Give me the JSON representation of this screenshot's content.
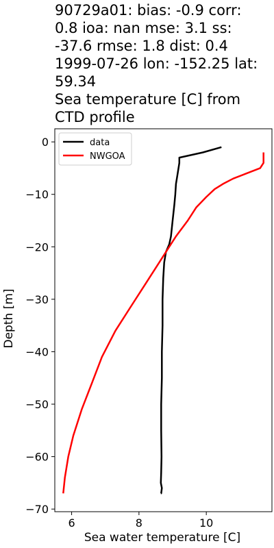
{
  "title_lines": [
    "90729a01: bias: -0.9  corr:",
    "0.8  ioa: nan  mse: 3.1  ss:",
    "-37.6  rmse: 1.8  dist: 0.4",
    "1999-07-26 lon: -152.25 lat:",
    "59.34",
    "Sea temperature [C] from",
    "CTD profile"
  ],
  "chart_data": {
    "type": "line",
    "xlabel": "Sea water temperature [C]",
    "ylabel": "Depth [m]",
    "xlim": [
      5.5,
      11.95
    ],
    "ylim": [
      -70.5,
      2.5
    ],
    "xticks": [
      6,
      8,
      10
    ],
    "yticks": [
      0,
      -10,
      -20,
      -30,
      -40,
      -50,
      -60,
      -70
    ],
    "legend_position": "top-left",
    "grid": false,
    "series": [
      {
        "name": "data",
        "color": "#000000",
        "x": [
          10.45,
          9.9,
          9.2,
          9.2,
          9.15,
          9.1,
          9.08,
          9.05,
          9.0,
          8.95,
          8.9,
          8.8,
          8.75,
          8.72,
          8.7,
          8.7,
          8.68,
          8.68,
          8.66,
          8.66,
          8.67,
          8.66,
          8.65,
          8.68,
          8.66,
          8.65
        ],
        "y": [
          -1,
          -2,
          -3,
          -4,
          -6,
          -8,
          -10,
          -12,
          -15,
          -18,
          -19.5,
          -21,
          -23,
          -26,
          -30,
          -35,
          -40,
          -45,
          -50,
          -55,
          -60,
          -63,
          -65,
          -66,
          -67,
          -67
        ]
      },
      {
        "name": "NWGOA",
        "color": "#ff0000",
        "x": [
          11.7,
          11.7,
          11.6,
          11.2,
          10.8,
          10.5,
          10.25,
          10.0,
          9.7,
          9.45,
          9.1,
          8.7,
          8.2,
          7.8,
          7.3,
          6.9,
          6.6,
          6.3,
          6.05,
          5.9,
          5.8,
          5.75
        ],
        "y": [
          -2,
          -4,
          -5,
          -6,
          -7,
          -8,
          -9,
          -10.5,
          -12.5,
          -15,
          -18,
          -22,
          -27,
          -31,
          -36,
          -41,
          -46,
          -51,
          -56,
          -60,
          -64,
          -67
        ]
      }
    ]
  }
}
